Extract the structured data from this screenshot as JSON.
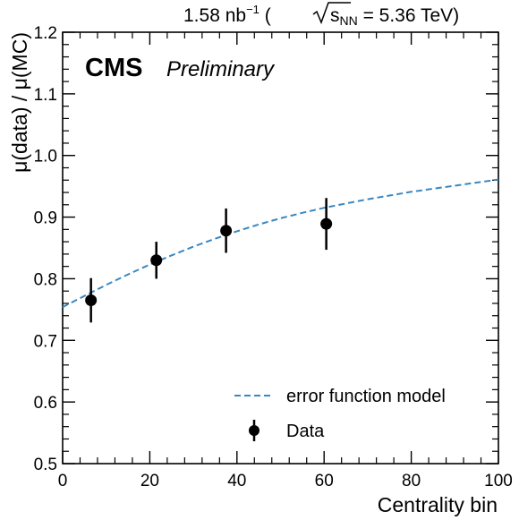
{
  "header": {
    "lumi": "1.58 nb",
    "lumi_exponent": "−1",
    "energy_open": "(",
    "sqrt_s": "s",
    "sqrt_s_sub": "NN",
    "energy_value": " = 5.36 TeV)"
  },
  "labels": {
    "experiment": "CMS",
    "status": "Preliminary"
  },
  "colors": {
    "model_line": "#3a87c0",
    "data_marker": "#000000",
    "background": "#ffffff"
  },
  "chart_data": {
    "type": "scatter",
    "xlabel": "Centrality bin",
    "ylabel": "μ(data) / μ(MC)",
    "xlim": [
      0,
      100
    ],
    "ylim": [
      0.5,
      1.2
    ],
    "x_ticks": [
      "0",
      "20",
      "40",
      "60",
      "80",
      "100"
    ],
    "y_ticks": [
      "0.5",
      "0.6",
      "0.7",
      "0.8",
      "0.9",
      "1.0",
      "1.1",
      "1.2"
    ],
    "legend_position": "bottom-right",
    "series": [
      {
        "name": "Data",
        "kind": "points",
        "x": [
          6.5,
          21.5,
          37.5,
          60.5
        ],
        "y": [
          0.765,
          0.83,
          0.878,
          0.889
        ],
        "yerr": [
          0.036,
          0.03,
          0.036,
          0.042
        ]
      },
      {
        "name": "error function model",
        "kind": "dashed-line",
        "x": [
          0,
          5,
          10,
          15,
          20,
          25,
          30,
          35,
          40,
          45,
          50,
          55,
          60,
          65,
          70,
          75,
          80,
          85,
          90,
          95,
          100
        ],
        "y": [
          0.754,
          0.772,
          0.79,
          0.807,
          0.823,
          0.838,
          0.852,
          0.865,
          0.877,
          0.888,
          0.898,
          0.907,
          0.915,
          0.922,
          0.929,
          0.935,
          0.941,
          0.946,
          0.951,
          0.956,
          0.961
        ]
      }
    ]
  }
}
